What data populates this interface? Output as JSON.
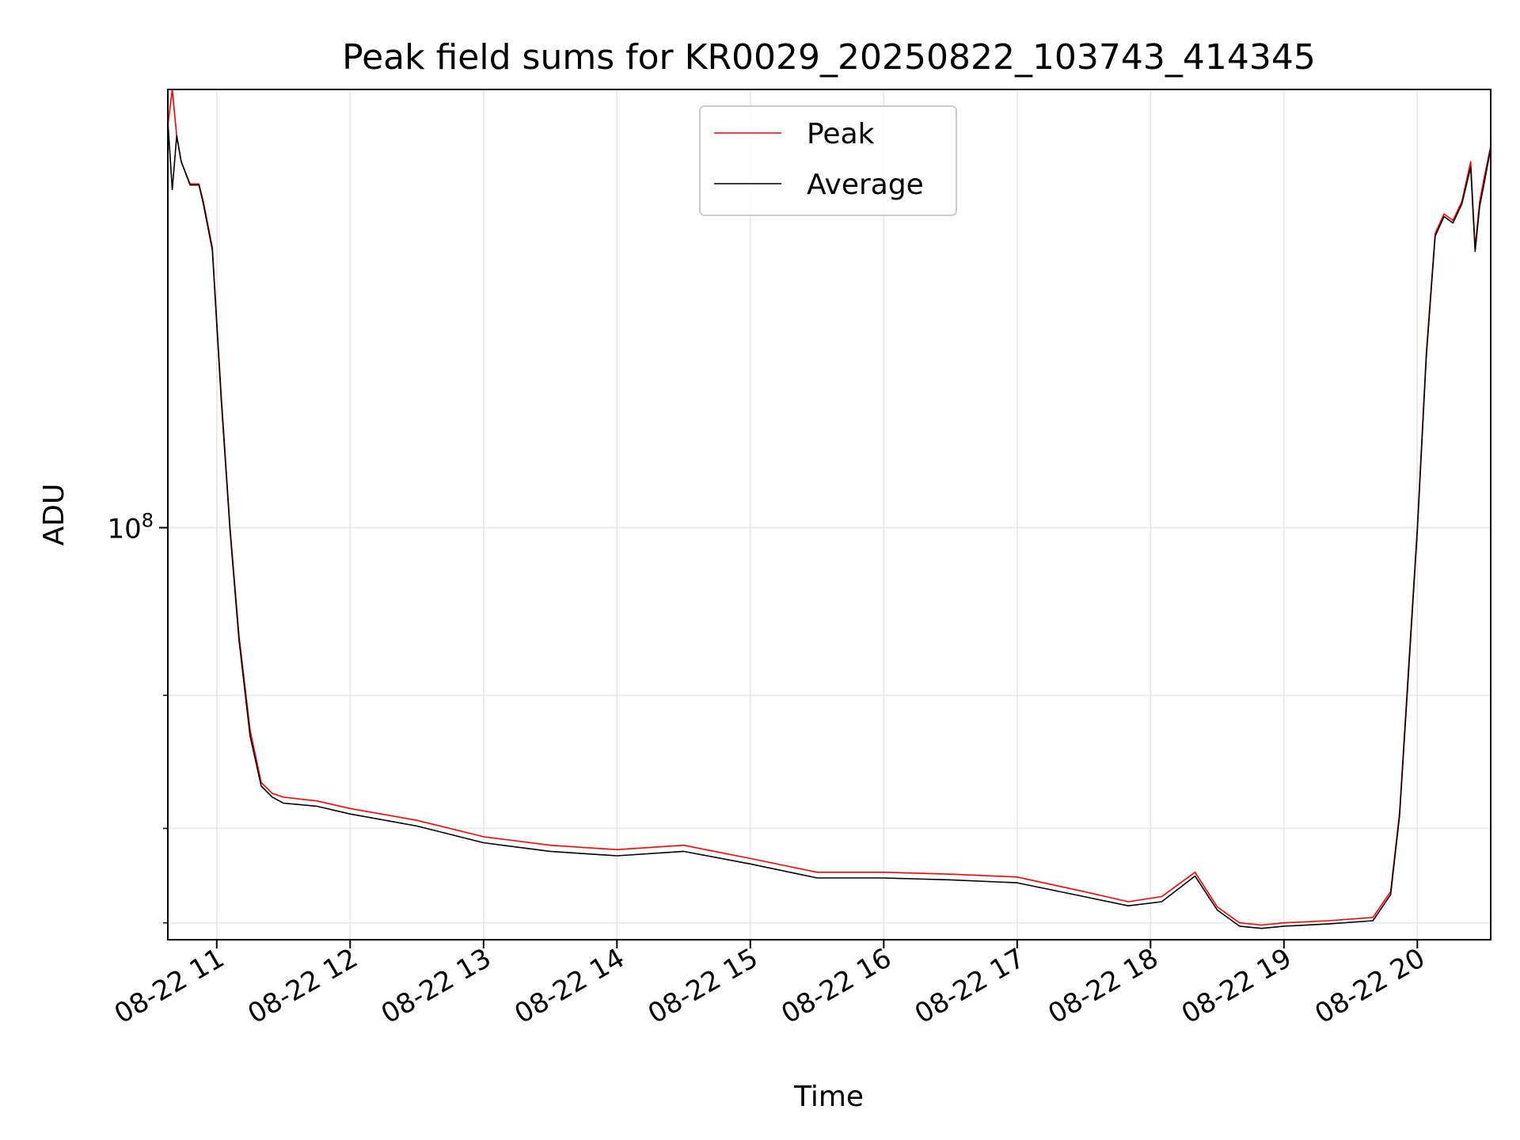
{
  "chart_data": {
    "type": "line",
    "title": "Peak field sums for KR0029_20250822_103743_414345",
    "xlabel": "Time",
    "ylabel": "ADU",
    "y_scale": "log",
    "ylim": [
      28500000,
      380000000
    ],
    "xlim": [
      "2025-08-22 10:38",
      "2025-08-22 20:33"
    ],
    "x_ticks": [
      {
        "t": "2025-08-22 11:00",
        "label": "08-22 11"
      },
      {
        "t": "2025-08-22 12:00",
        "label": "08-22 12"
      },
      {
        "t": "2025-08-22 13:00",
        "label": "08-22 13"
      },
      {
        "t": "2025-08-22 14:00",
        "label": "08-22 14"
      },
      {
        "t": "2025-08-22 15:00",
        "label": "08-22 15"
      },
      {
        "t": "2025-08-22 16:00",
        "label": "08-22 16"
      },
      {
        "t": "2025-08-22 17:00",
        "label": "08-22 17"
      },
      {
        "t": "2025-08-22 18:00",
        "label": "08-22 18"
      },
      {
        "t": "2025-08-22 19:00",
        "label": "08-22 19"
      },
      {
        "t": "2025-08-22 20:00",
        "label": "08-22 20"
      }
    ],
    "y_major_ticks": [
      {
        "value": 100000000,
        "base": "10",
        "exp": "8"
      }
    ],
    "y_minor_ticks": [
      30000000,
      40000000,
      60000000
    ],
    "grid": true,
    "legend_position": "top-center",
    "series": [
      {
        "name": "Peak",
        "color": "#ff0000",
        "x": [
          "2025-08-22 10:38",
          "2025-08-22 10:40",
          "2025-08-22 10:42",
          "2025-08-22 10:44",
          "2025-08-22 10:48",
          "2025-08-22 10:52",
          "2025-08-22 10:54",
          "2025-08-22 10:58",
          "2025-08-22 11:02",
          "2025-08-22 11:06",
          "2025-08-22 11:10",
          "2025-08-22 11:15",
          "2025-08-22 11:20",
          "2025-08-22 11:25",
          "2025-08-22 11:30",
          "2025-08-22 11:45",
          "2025-08-22 12:00",
          "2025-08-22 12:30",
          "2025-08-22 13:00",
          "2025-08-22 13:30",
          "2025-08-22 14:00",
          "2025-08-22 14:30",
          "2025-08-22 15:00",
          "2025-08-22 15:30",
          "2025-08-22 16:00",
          "2025-08-22 16:30",
          "2025-08-22 17:00",
          "2025-08-22 17:30",
          "2025-08-22 17:50",
          "2025-08-22 18:05",
          "2025-08-22 18:20",
          "2025-08-22 18:30",
          "2025-08-22 18:40",
          "2025-08-22 18:50",
          "2025-08-22 19:00",
          "2025-08-22 19:20",
          "2025-08-22 19:40",
          "2025-08-22 19:48",
          "2025-08-22 19:52",
          "2025-08-22 19:56",
          "2025-08-22 20:00",
          "2025-08-22 20:04",
          "2025-08-22 20:08",
          "2025-08-22 20:12",
          "2025-08-22 20:16",
          "2025-08-22 20:20",
          "2025-08-22 20:24",
          "2025-08-22 20:26",
          "2025-08-22 20:28",
          "2025-08-22 20:30",
          "2025-08-22 20:33"
        ],
        "y": [
          340000000,
          380000000,
          330000000,
          305000000,
          285000000,
          285000000,
          270000000,
          235000000,
          150000000,
          100000000,
          72000000,
          54000000,
          46000000,
          44500000,
          44000000,
          43500000,
          42500000,
          41000000,
          39000000,
          38000000,
          37500000,
          38000000,
          36500000,
          35000000,
          35000000,
          34800000,
          34500000,
          33000000,
          32000000,
          32500000,
          35000000,
          31500000,
          30000000,
          29800000,
          30000000,
          30200000,
          30500000,
          33000000,
          42000000,
          65000000,
          100000000,
          170000000,
          245000000,
          260000000,
          255000000,
          270000000,
          305000000,
          235000000,
          270000000,
          290000000,
          320000000
        ]
      },
      {
        "name": "Average",
        "color": "#000000",
        "x": [
          "2025-08-22 10:38",
          "2025-08-22 10:40",
          "2025-08-22 10:42",
          "2025-08-22 10:44",
          "2025-08-22 10:48",
          "2025-08-22 10:52",
          "2025-08-22 10:54",
          "2025-08-22 10:58",
          "2025-08-22 11:02",
          "2025-08-22 11:06",
          "2025-08-22 11:10",
          "2025-08-22 11:15",
          "2025-08-22 11:20",
          "2025-08-22 11:25",
          "2025-08-22 11:30",
          "2025-08-22 11:45",
          "2025-08-22 12:00",
          "2025-08-22 12:30",
          "2025-08-22 13:00",
          "2025-08-22 13:30",
          "2025-08-22 14:00",
          "2025-08-22 14:30",
          "2025-08-22 15:00",
          "2025-08-22 15:30",
          "2025-08-22 16:00",
          "2025-08-22 16:30",
          "2025-08-22 17:00",
          "2025-08-22 17:30",
          "2025-08-22 17:50",
          "2025-08-22 18:05",
          "2025-08-22 18:20",
          "2025-08-22 18:30",
          "2025-08-22 18:40",
          "2025-08-22 18:50",
          "2025-08-22 19:00",
          "2025-08-22 19:20",
          "2025-08-22 19:40",
          "2025-08-22 19:48",
          "2025-08-22 19:52",
          "2025-08-22 19:56",
          "2025-08-22 20:00",
          "2025-08-22 20:04",
          "2025-08-22 20:08",
          "2025-08-22 20:12",
          "2025-08-22 20:16",
          "2025-08-22 20:20",
          "2025-08-22 20:24",
          "2025-08-22 20:26",
          "2025-08-22 20:28",
          "2025-08-22 20:30",
          "2025-08-22 20:33"
        ],
        "y": [
          345000000,
          280000000,
          330000000,
          305000000,
          284000000,
          284000000,
          268000000,
          233000000,
          148000000,
          99000000,
          71000000,
          53000000,
          45500000,
          44000000,
          43200000,
          42800000,
          41800000,
          40300000,
          38300000,
          37300000,
          36800000,
          37300000,
          35900000,
          34400000,
          34400000,
          34200000,
          33900000,
          32500000,
          31600000,
          32000000,
          34600000,
          31200000,
          29700000,
          29500000,
          29700000,
          29900000,
          30200000,
          32700000,
          41600000,
          64000000,
          99000000,
          168000000,
          243000000,
          258000000,
          253000000,
          268000000,
          300000000,
          232000000,
          266000000,
          285000000,
          318000000
        ]
      }
    ]
  }
}
